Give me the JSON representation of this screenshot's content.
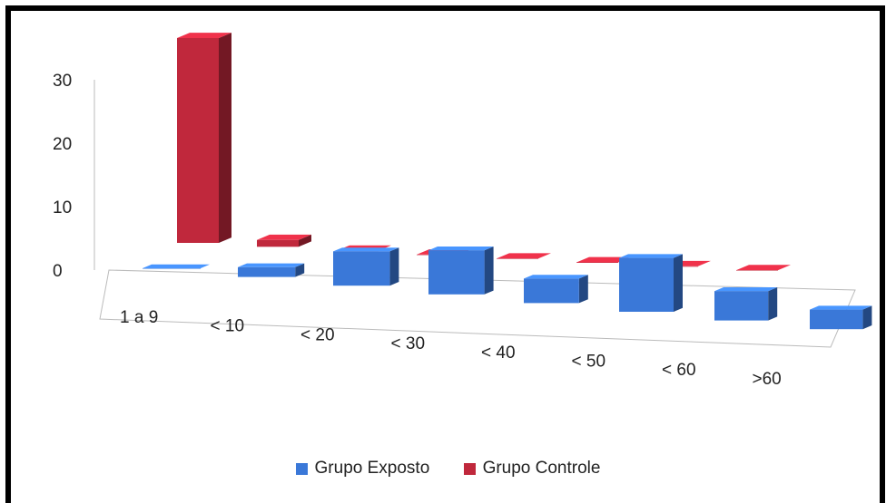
{
  "chart_data": {
    "type": "bar",
    "style": "3d-clustered",
    "categories": [
      "1  a 9",
      "< 10",
      "< 20",
      "< 30",
      "< 40",
      "< 50",
      "< 60",
      ">60"
    ],
    "series": [
      {
        "name": "Grupo Exposto",
        "color": "#3a78d8",
        "values": [
          0,
          2,
          7,
          9,
          5,
          11,
          6,
          4
        ]
      },
      {
        "name": "Grupo Controle",
        "color": "#c0283c",
        "values": [
          30,
          1,
          0,
          0,
          0,
          0,
          0,
          0
        ]
      }
    ],
    "yticks": [
      0,
      10,
      20,
      30
    ],
    "ylim": [
      0,
      30
    ],
    "grid": false,
    "legend_position": "bottom"
  }
}
